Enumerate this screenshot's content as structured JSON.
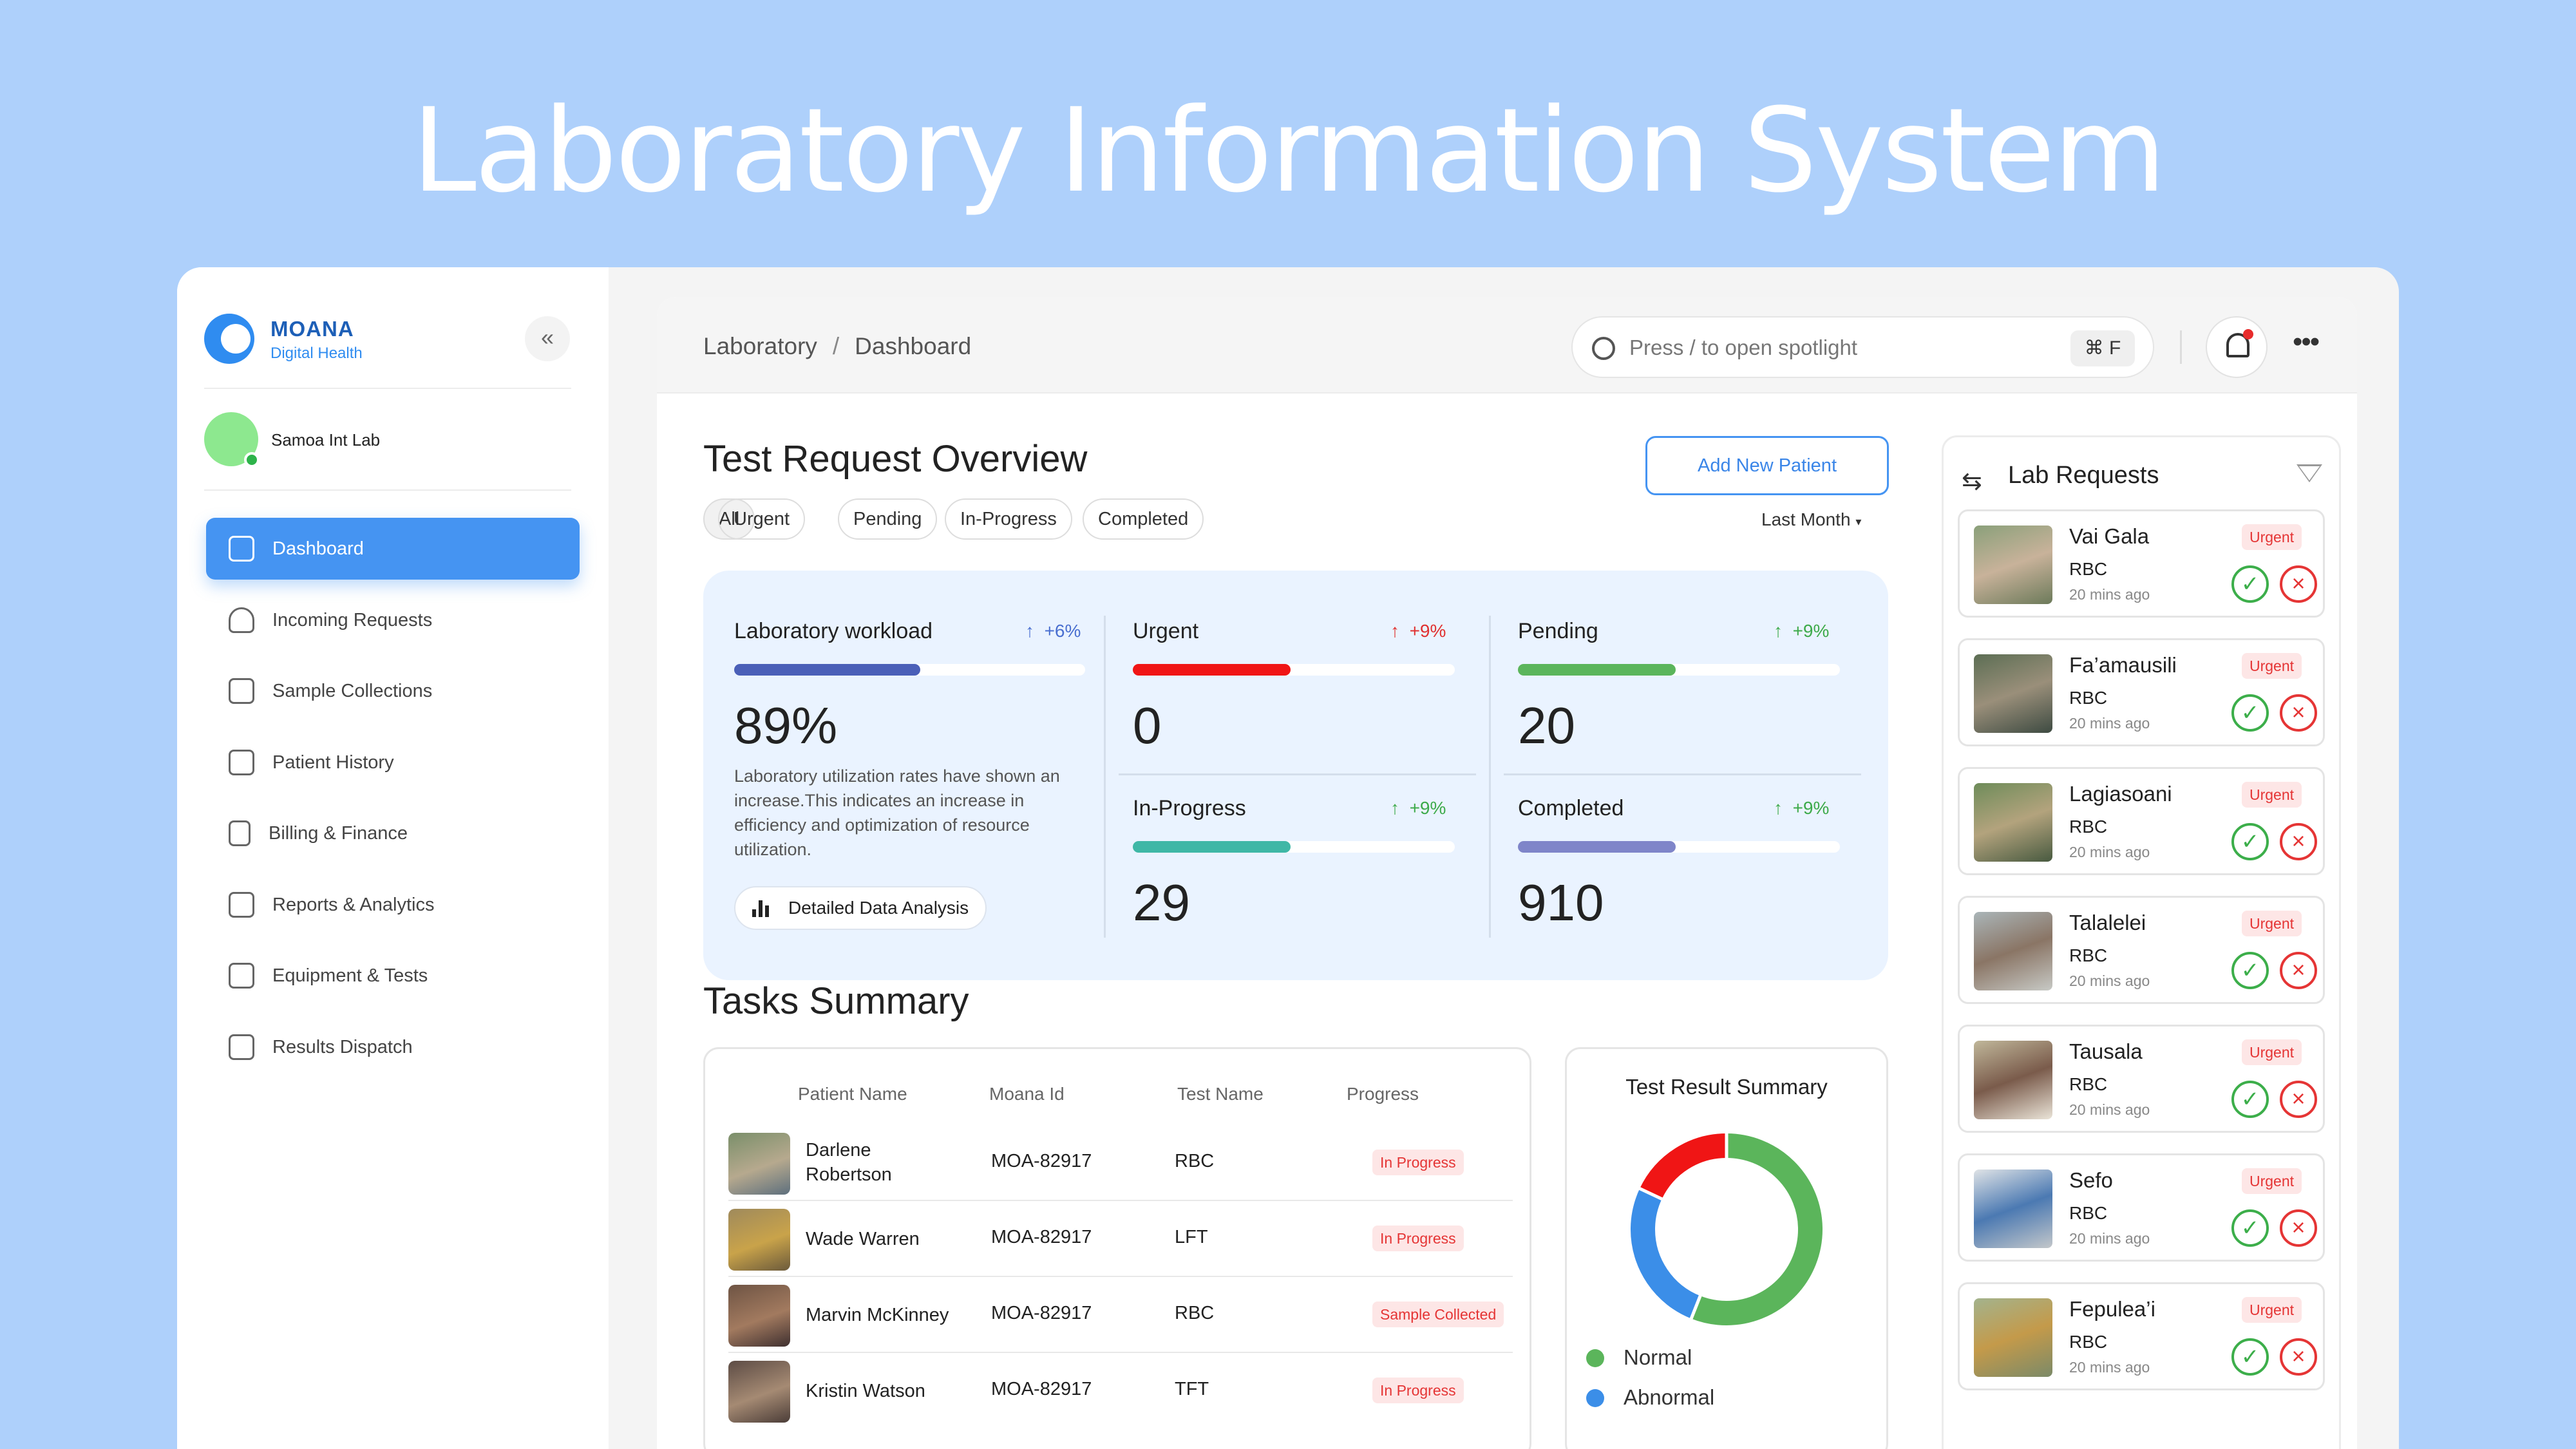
{
  "hero": {
    "title": "Laboratory Information System"
  },
  "brand": {
    "name": "MOANA",
    "tagline": "Digital Health"
  },
  "lab": {
    "name": "Samoa Int Lab"
  },
  "sidebar": {
    "items": [
      {
        "label": "Dashboard",
        "icon": "grid-icon",
        "active": true
      },
      {
        "label": "Incoming Requests",
        "icon": "person-icon"
      },
      {
        "label": "Sample Collections",
        "icon": "calendar-icon"
      },
      {
        "label": "Patient History",
        "icon": "calendar-icon"
      },
      {
        "label": "Billing & Finance",
        "icon": "receipt-icon"
      },
      {
        "label": "Reports & Analytics",
        "icon": "chart-icon"
      },
      {
        "label": "Equipment & Tests",
        "icon": "grid-icon"
      },
      {
        "label": "Results Dispatch",
        "icon": "grid-icon"
      }
    ]
  },
  "topbar": {
    "breadcrumb": [
      "Laboratory",
      "Dashboard"
    ],
    "search_placeholder": "Press / to open spotlight",
    "shortcut": "⌘ F"
  },
  "overview": {
    "title": "Test Request Overview",
    "add_button": "Add New Patient",
    "filters": [
      "All",
      "Urgent",
      "Pending",
      "In-Progress",
      "Completed"
    ],
    "period": "Last Month",
    "workload": {
      "title": "Laboratory workload",
      "delta": "+6%",
      "value": "89%",
      "fill": 0.53,
      "description": "Laboratory utilization rates have shown an increase.This indicates an increase in efficiency and optimization of resource utilization.",
      "button": "Detailed Data Analysis"
    },
    "stats": [
      {
        "title": "Urgent",
        "delta": "+9%",
        "value": "0",
        "fill": 0.49,
        "color": "#f01515",
        "delta_color": "#e03030"
      },
      {
        "title": "Pending",
        "delta": "+9%",
        "value": "20",
        "fill": 0.49,
        "color": "#5bb55b",
        "delta_color": "#3daa4a"
      },
      {
        "title": "In-Progress",
        "delta": "+9%",
        "value": "29",
        "fill": 0.49,
        "color": "#3fb7a6",
        "delta_color": "#3daa4a"
      },
      {
        "title": "Completed",
        "delta": "+9%",
        "value": "910",
        "fill": 0.49,
        "color": "#7f85c9",
        "delta_color": "#3daa4a"
      }
    ]
  },
  "tasks": {
    "title": "Tasks Summary",
    "columns": [
      "Patient Name",
      "Moana Id",
      "Test Name",
      "Progress"
    ],
    "rows": [
      {
        "name": "Darlene Robertson",
        "id": "MOA-82917",
        "test": "RBC",
        "status": "In Progress"
      },
      {
        "name": "Wade Warren",
        "id": "MOA-82917",
        "test": "LFT",
        "status": "In Progress"
      },
      {
        "name": "Marvin McKinney",
        "id": "MOA-82917",
        "test": "RBC",
        "status": "Sample Collected"
      },
      {
        "name": "Kristin Watson",
        "id": "MOA-82917",
        "test": "TFT",
        "status": "In Progress"
      }
    ]
  },
  "test_result_summary": {
    "title": "Test Result Summary",
    "legend": [
      {
        "label": "Normal",
        "color": "#5bb55b"
      },
      {
        "label": "Abnormal",
        "color": "#3b8ee8"
      }
    ],
    "segments": [
      {
        "label": "Normal",
        "value": 0.56,
        "color": "#5bb55b"
      },
      {
        "label": "Abnormal",
        "value": 0.26,
        "color": "#3b8ee8"
      },
      {
        "label": "",
        "value": 0.18,
        "color": "#f01515"
      }
    ]
  },
  "lab_requests": {
    "title": "Lab Requests",
    "items": [
      {
        "name": "Vai Gala",
        "test": "RBC",
        "time": "20 mins ago",
        "badge": "Urgent"
      },
      {
        "name": "Fa’amausili",
        "test": "RBC",
        "time": "20 mins ago",
        "badge": "Urgent"
      },
      {
        "name": "Lagiasoani",
        "test": "RBC",
        "time": "20 mins ago",
        "badge": "Urgent"
      },
      {
        "name": "Talalelei",
        "test": "RBC",
        "time": "20 mins ago",
        "badge": "Urgent"
      },
      {
        "name": "Tausala",
        "test": "RBC",
        "time": "20 mins ago",
        "badge": "Urgent"
      },
      {
        "name": "Sefo",
        "test": "RBC",
        "time": "20 mins ago",
        "badge": "Urgent"
      },
      {
        "name": "Fepulea’i",
        "test": "RBC",
        "time": "20 mins ago",
        "badge": "Urgent"
      }
    ]
  }
}
